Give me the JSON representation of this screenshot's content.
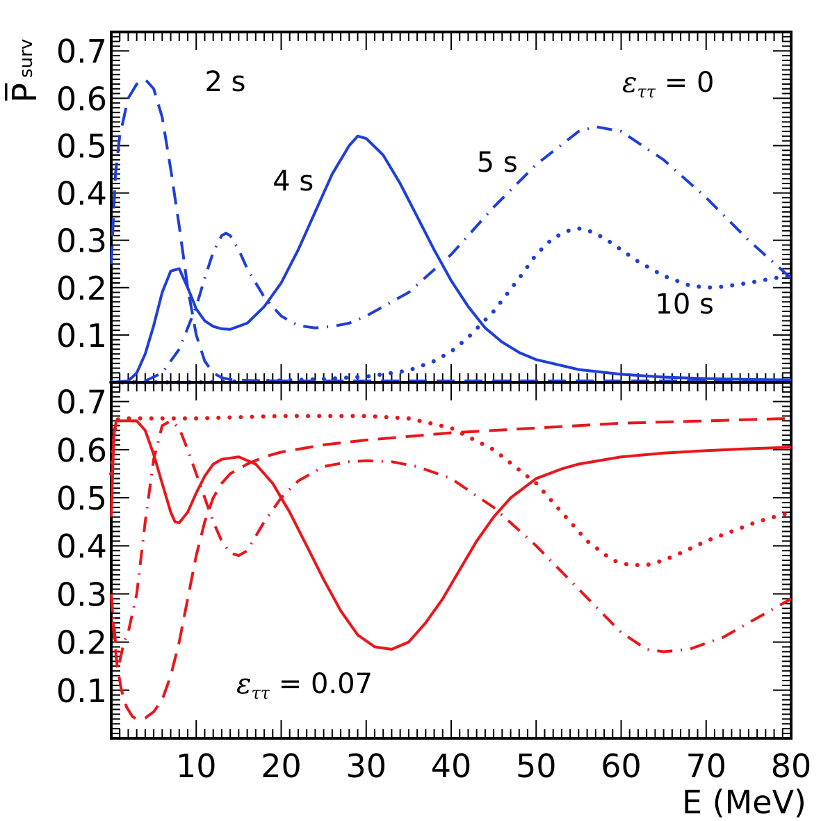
{
  "chart_data": [
    {
      "type": "line",
      "panel": "top",
      "color": "#1f3fd6",
      "ylabel": "P̅",
      "ylabel_sub": "surv",
      "xlim": [
        0,
        80
      ],
      "ylim": [
        0,
        0.74
      ],
      "yticks": [
        "0.1",
        "0.2",
        "0.3",
        "0.4",
        "0.5",
        "0.6",
        "0.7"
      ],
      "annotations": [
        {
          "text": "2 s",
          "x": 11,
          "y": 0.615
        },
        {
          "text": "4 s",
          "x": 19,
          "y": 0.405
        },
        {
          "text": "5 s",
          "x": 43,
          "y": 0.445
        },
        {
          "text": "10 s",
          "x": 64,
          "y": 0.145
        }
      ],
      "epsilon_label": {
        "symbol": "ε",
        "sub": "ττ",
        "value": " = 0"
      },
      "series": [
        {
          "style": "dashed",
          "x": [
            0,
            0.5,
            1,
            2,
            3,
            4,
            5,
            6,
            7,
            8,
            9,
            10,
            11,
            12,
            13,
            14,
            16,
            20,
            30,
            40,
            50,
            60,
            70,
            80
          ],
          "values": [
            0.25,
            0.44,
            0.52,
            0.6,
            0.63,
            0.64,
            0.62,
            0.56,
            0.45,
            0.33,
            0.2,
            0.1,
            0.045,
            0.02,
            0.01,
            0.006,
            0.004,
            0.003,
            0.003,
            0.003,
            0.003,
            0.003,
            0.003,
            0.003
          ]
        },
        {
          "style": "solid",
          "x": [
            0,
            2,
            3,
            4,
            5,
            6,
            7,
            8,
            9,
            10,
            11,
            12,
            13,
            14,
            16,
            18,
            20,
            22,
            24,
            26,
            28,
            29,
            30,
            32,
            34,
            36,
            38,
            40,
            42,
            44,
            46,
            48,
            50,
            55,
            60,
            65,
            70,
            75,
            80
          ],
          "values": [
            0.0,
            0.003,
            0.02,
            0.06,
            0.12,
            0.19,
            0.235,
            0.24,
            0.2,
            0.155,
            0.13,
            0.118,
            0.113,
            0.112,
            0.125,
            0.16,
            0.21,
            0.28,
            0.36,
            0.44,
            0.5,
            0.52,
            0.515,
            0.48,
            0.42,
            0.35,
            0.28,
            0.215,
            0.16,
            0.115,
            0.085,
            0.063,
            0.048,
            0.027,
            0.017,
            0.011,
            0.008,
            0.006,
            0.005
          ]
        },
        {
          "style": "dash-dot",
          "x": [
            0,
            4,
            6,
            8,
            10,
            11,
            12,
            13,
            13.5,
            14,
            15,
            16,
            18,
            20,
            22,
            24,
            26,
            28,
            30,
            35,
            40,
            45,
            50,
            55,
            57,
            60,
            65,
            70,
            75,
            80
          ],
          "values": [
            0.0,
            0.003,
            0.02,
            0.07,
            0.16,
            0.22,
            0.275,
            0.31,
            0.315,
            0.31,
            0.28,
            0.24,
            0.18,
            0.14,
            0.12,
            0.115,
            0.118,
            0.125,
            0.14,
            0.19,
            0.27,
            0.37,
            0.46,
            0.53,
            0.54,
            0.53,
            0.47,
            0.39,
            0.3,
            0.22
          ]
        },
        {
          "style": "dotted",
          "x": [
            0,
            5,
            10,
            15,
            20,
            25,
            30,
            35,
            38,
            40,
            42,
            45,
            48,
            50,
            52,
            54,
            55,
            56,
            58,
            60,
            62,
            65,
            68,
            70,
            72,
            75,
            78,
            80
          ],
          "values": [
            0.0,
            0.0,
            0.0,
            0.002,
            0.004,
            0.007,
            0.012,
            0.025,
            0.045,
            0.065,
            0.095,
            0.15,
            0.22,
            0.27,
            0.305,
            0.322,
            0.325,
            0.322,
            0.305,
            0.28,
            0.255,
            0.225,
            0.205,
            0.2,
            0.202,
            0.21,
            0.22,
            0.225
          ]
        }
      ]
    },
    {
      "type": "line",
      "panel": "bottom",
      "color": "#e8171c",
      "xlabel": "E (MeV)",
      "xlim": [
        0,
        80
      ],
      "ylim": [
        0,
        0.74
      ],
      "xticks": [
        "10",
        "20",
        "30",
        "40",
        "50",
        "60",
        "70",
        "80"
      ],
      "yticks": [
        "0.1",
        "0.2",
        "0.3",
        "0.4",
        "0.5",
        "0.6",
        "0.7"
      ],
      "epsilon_label": {
        "symbol": "ε",
        "sub": "ττ",
        "value": " = 0.07"
      },
      "series": [
        {
          "style": "dashed",
          "x": [
            0,
            0.3,
            0.7,
            1.2,
            1.8,
            2.5,
            3,
            3.5,
            4,
            5,
            6,
            7,
            8,
            9,
            10,
            11,
            12,
            13,
            14,
            16,
            18,
            20,
            25,
            30,
            40,
            50,
            60,
            70,
            80
          ],
          "values": [
            0.3,
            0.22,
            0.15,
            0.1,
            0.065,
            0.045,
            0.04,
            0.04,
            0.042,
            0.055,
            0.08,
            0.13,
            0.2,
            0.29,
            0.38,
            0.45,
            0.5,
            0.53,
            0.55,
            0.57,
            0.585,
            0.595,
            0.61,
            0.62,
            0.635,
            0.645,
            0.655,
            0.66,
            0.665
          ]
        },
        {
          "style": "solid",
          "x": [
            0,
            0.3,
            0.6,
            1,
            2,
            3,
            4,
            5,
            6,
            7,
            7.5,
            8,
            9,
            10,
            11,
            12,
            13,
            15,
            17,
            19,
            21,
            23,
            25,
            27,
            29,
            31,
            33,
            35,
            37,
            39,
            41,
            43,
            45,
            47,
            50,
            53,
            55,
            60,
            65,
            70,
            75,
            80
          ],
          "values": [
            0.46,
            0.63,
            0.66,
            0.66,
            0.66,
            0.66,
            0.64,
            0.59,
            0.53,
            0.47,
            0.45,
            0.448,
            0.47,
            0.51,
            0.545,
            0.57,
            0.58,
            0.585,
            0.57,
            0.53,
            0.47,
            0.4,
            0.33,
            0.265,
            0.215,
            0.19,
            0.185,
            0.2,
            0.24,
            0.29,
            0.35,
            0.41,
            0.46,
            0.5,
            0.54,
            0.56,
            0.57,
            0.585,
            0.593,
            0.598,
            0.602,
            0.605
          ]
        },
        {
          "style": "dash-dot",
          "x": [
            0,
            0.5,
            1,
            1.5,
            2,
            3,
            4,
            5,
            6,
            7,
            8,
            9,
            10,
            11,
            12,
            13,
            14,
            15,
            16,
            17,
            18,
            20,
            22,
            25,
            28,
            30,
            33,
            36,
            40,
            45,
            50,
            55,
            60,
            63,
            65,
            68,
            72,
            76,
            80
          ],
          "values": [
            0.3,
            0.2,
            0.16,
            0.2,
            0.22,
            0.3,
            0.45,
            0.58,
            0.65,
            0.66,
            0.645,
            0.6,
            0.55,
            0.5,
            0.45,
            0.41,
            0.385,
            0.38,
            0.39,
            0.42,
            0.45,
            0.5,
            0.535,
            0.565,
            0.575,
            0.577,
            0.575,
            0.565,
            0.54,
            0.48,
            0.4,
            0.31,
            0.22,
            0.185,
            0.18,
            0.185,
            0.21,
            0.25,
            0.29
          ]
        },
        {
          "style": "dotted",
          "x": [
            0,
            0.5,
            1,
            2,
            5,
            10,
            20,
            30,
            35,
            40,
            45,
            50,
            53,
            56,
            59,
            61,
            63,
            65,
            67,
            70,
            73,
            76,
            80
          ],
          "values": [
            0.55,
            0.66,
            0.665,
            0.665,
            0.665,
            0.665,
            0.67,
            0.67,
            0.665,
            0.645,
            0.6,
            0.53,
            0.47,
            0.41,
            0.37,
            0.36,
            0.36,
            0.37,
            0.385,
            0.41,
            0.43,
            0.45,
            0.47
          ]
        }
      ]
    }
  ]
}
